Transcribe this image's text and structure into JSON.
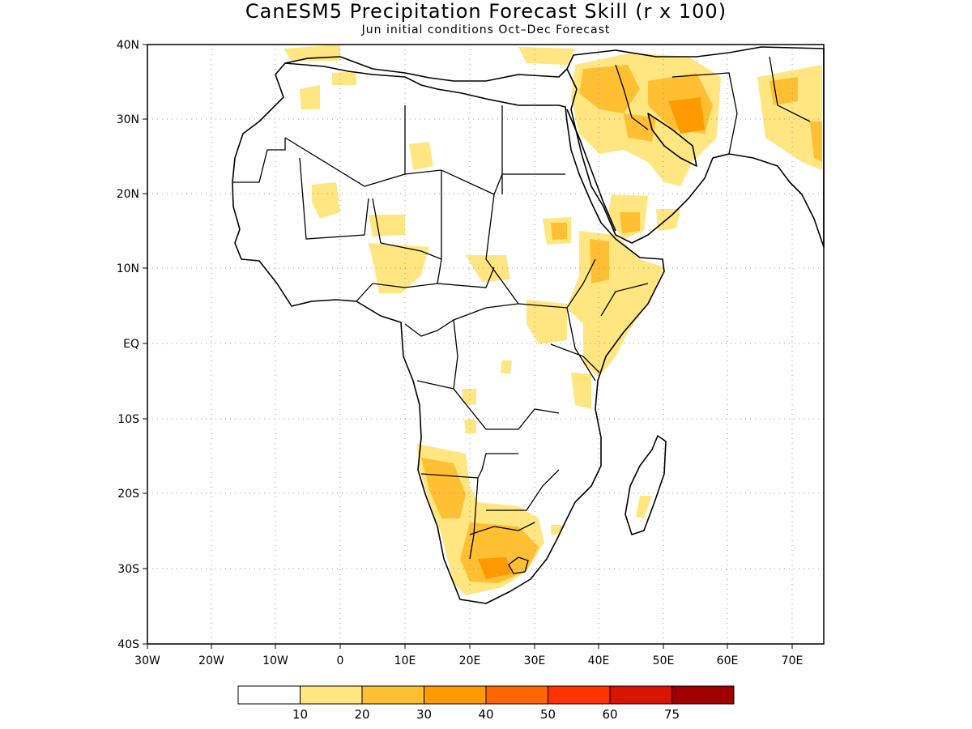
{
  "title": "CanESM5 Precipitation Forecast Skill (r x 100)",
  "subtitle": "Jun initial conditions  Oct–Dec Forecast",
  "map": {
    "lon_range": [
      -30,
      75
    ],
    "lat_range": [
      -40,
      40
    ],
    "x_ticks": [
      "30W",
      "20W",
      "10W",
      "0",
      "10E",
      "20E",
      "30E",
      "40E",
      "50E",
      "60E",
      "70E"
    ],
    "y_ticks": [
      "40N",
      "30N",
      "20N",
      "10N",
      "EQ",
      "10S",
      "20S",
      "30S",
      "40S"
    ],
    "grid": "dotted",
    "region": "Africa"
  },
  "legend": {
    "colors": [
      "#ffffff",
      "#ffe680",
      "#ffbf33",
      "#ff9a00",
      "#ff6600",
      "#ff3300",
      "#d81500",
      "#a00000"
    ],
    "labels": [
      "10",
      "20",
      "30",
      "40",
      "50",
      "60",
      "75"
    ]
  }
}
